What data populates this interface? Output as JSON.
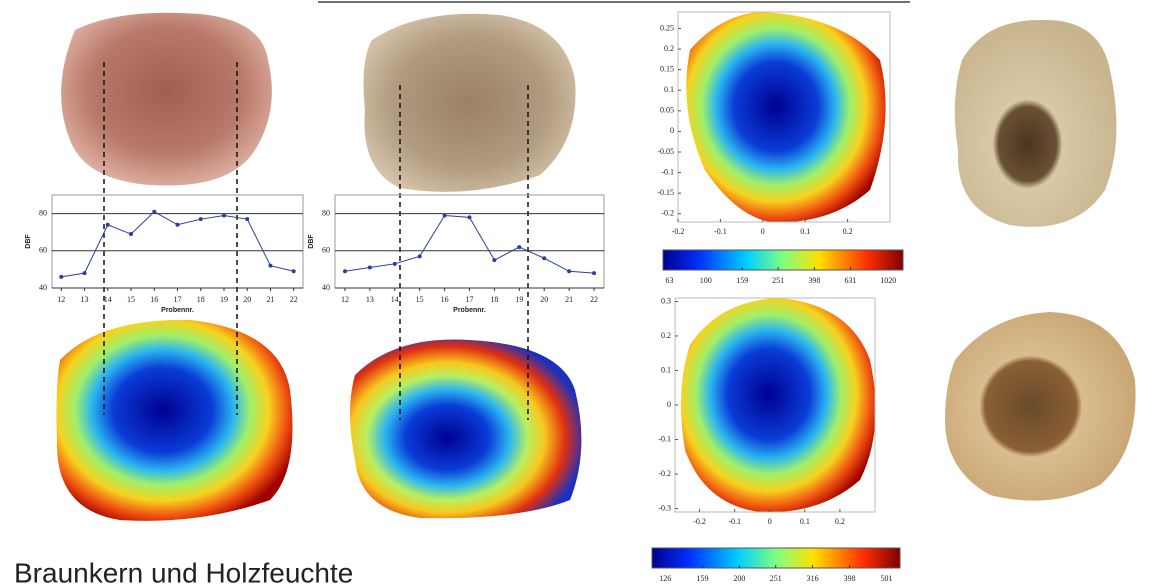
{
  "title": "Braunkern und Holzfeuchte",
  "chart_data": [
    {
      "type": "line",
      "ylabel": "DBF",
      "xlabel": "Probennr.",
      "x": [
        12,
        13,
        14,
        15,
        16,
        17,
        18,
        19,
        20,
        21,
        22
      ],
      "series": [
        {
          "color": "#2a3f9a",
          "values": [
            46,
            48,
            74,
            69,
            81,
            74,
            77,
            79,
            77,
            52,
            49
          ]
        }
      ],
      "xlim": [
        11.6,
        22.4
      ],
      "xticks": [
        12,
        13,
        14,
        15,
        16,
        17,
        18,
        19,
        20,
        21,
        22
      ],
      "ylim": [
        40,
        90
      ],
      "yticks": [
        40,
        60,
        80
      ],
      "grid": true
    },
    {
      "type": "line",
      "ylabel": "DBF",
      "xlabel": "Probennr.",
      "x": [
        12,
        13,
        14,
        15,
        16,
        17,
        18,
        19,
        20,
        21,
        22
      ],
      "series": [
        {
          "color": "#2a3f9a",
          "values": [
            49,
            51,
            53,
            57,
            79,
            78,
            55,
            62,
            56,
            49,
            48
          ]
        }
      ],
      "xlim": [
        11.6,
        22.4
      ],
      "xticks": [
        12,
        13,
        14,
        15,
        16,
        17,
        18,
        19,
        20,
        21,
        22
      ],
      "ylim": [
        40,
        90
      ],
      "yticks": [
        40,
        60,
        80
      ],
      "grid": true
    },
    {
      "type": "heatmap",
      "xlim": [
        -0.2,
        0.3
      ],
      "xticks": [
        -0.2,
        -0.1,
        0,
        0.1,
        0.2
      ],
      "ylim": [
        -0.22,
        0.29
      ],
      "yticks": [
        0.25,
        0.2,
        0.15,
        0.1,
        0.05,
        0,
        -0.05,
        -0.1,
        -0.15,
        -0.2
      ],
      "clim": [
        58,
        1230
      ],
      "log_colorbar": true,
      "cticks": [
        63,
        100,
        159,
        251,
        398,
        631,
        1020
      ]
    },
    {
      "type": "heatmap",
      "xlim": [
        -0.27,
        0.3
      ],
      "xticks": [
        -0.2,
        -0.1,
        0,
        0.1,
        0.2
      ],
      "ylim": [
        -0.31,
        0.31
      ],
      "yticks": [
        0.3,
        0.2,
        0.1,
        0,
        -0.1,
        -0.2,
        -0.3
      ],
      "clim": [
        116,
        545
      ],
      "log_colorbar": true,
      "cticks": [
        126,
        159,
        200,
        251,
        316,
        398,
        501
      ]
    }
  ]
}
